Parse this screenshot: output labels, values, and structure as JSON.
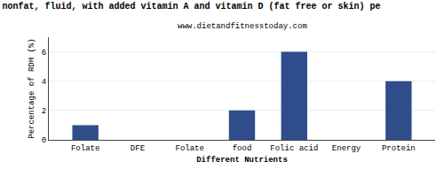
{
  "chart_data": {
    "type": "bar",
    "title": "nonfat, fluid, with added vitamin A and vitamin D (fat free or skin) pe",
    "subtitle": "www.dietandfitnesstoday.com",
    "categories": [
      "Folate",
      "DFE",
      "Folate",
      "food",
      "Folic acid",
      "Energy",
      "Protein"
    ],
    "values": [
      1.0,
      0.0,
      0.0,
      2.0,
      6.0,
      0.0,
      4.0
    ],
    "color": "#2e4d8a",
    "xlabel": "Different Nutrients",
    "ylabel": "Percentage of RDH (%)",
    "ylim": [
      0,
      7
    ],
    "yticks": [
      0,
      2,
      4,
      6
    ],
    "grid": true
  }
}
